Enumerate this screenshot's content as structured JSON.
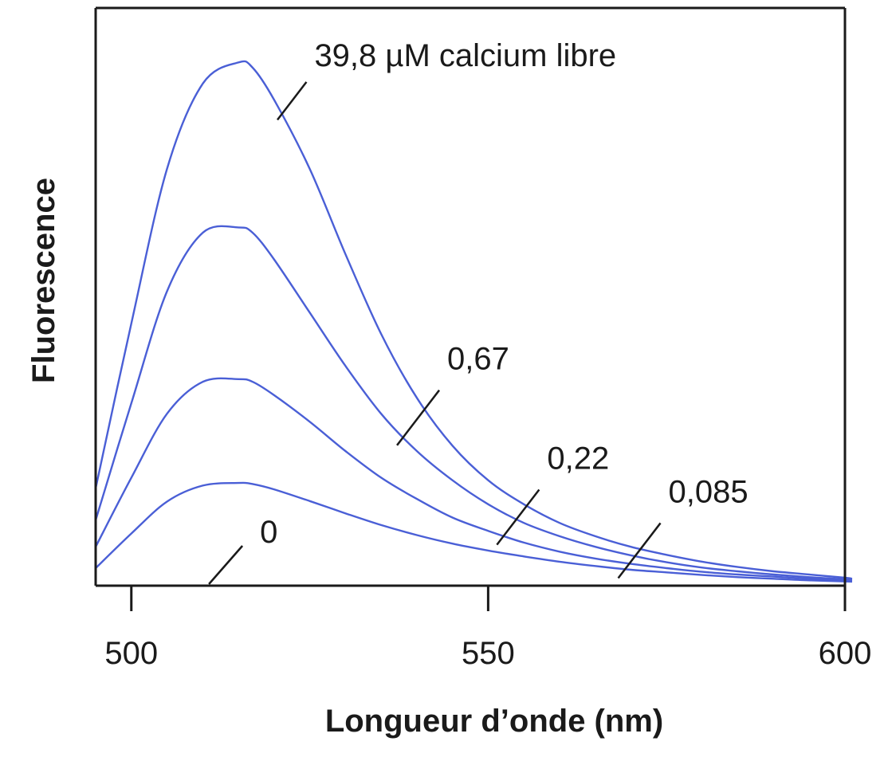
{
  "chart_data": {
    "type": "line",
    "title": "",
    "xlabel": "Longueur d’onde (nm)",
    "ylabel": "Fluorescence",
    "xlim": [
      495,
      600
    ],
    "ylim": [
      0,
      100
    ],
    "x_ticks": [
      500,
      550,
      600
    ],
    "x_tick_labels": [
      "500",
      "550",
      "600"
    ],
    "y_ticks_shown": false,
    "grid": false,
    "legend": "none",
    "line_color": "#4a5fd6",
    "axis_color": "#1a1a1a",
    "x": [
      495,
      500,
      505,
      510,
      515,
      517,
      520,
      525,
      530,
      535,
      540,
      545,
      550,
      555,
      560,
      565,
      570,
      575,
      580,
      585,
      590,
      595,
      600,
      601
    ],
    "series": [
      {
        "name": "39,8 µM calcium libre",
        "values": [
          18,
          49,
          78,
          94,
          98,
          97,
          91,
          78,
          62,
          47,
          35,
          26,
          19.5,
          15,
          11.5,
          9,
          7,
          5.5,
          4.2,
          3.2,
          2.4,
          1.8,
          1.2,
          1
        ]
      },
      {
        "name": "0,67",
        "values": [
          12,
          34,
          55,
          66,
          67,
          66,
          61,
          51,
          41,
          32,
          25,
          19.5,
          15,
          11.5,
          9,
          7,
          5.4,
          4.1,
          3.1,
          2.4,
          1.8,
          1.3,
          0.9,
          0.8
        ]
      },
      {
        "name": "0,22",
        "values": [
          7,
          20,
          32,
          38,
          38.5,
          38,
          35.5,
          30.5,
          25,
          20,
          16,
          12.5,
          10,
          7.8,
          6.1,
          4.8,
          3.8,
          3,
          2.3,
          1.8,
          1.4,
          1,
          0.7,
          0.6
        ]
      },
      {
        "name": "0,085",
        "values": [
          3,
          9.5,
          15.5,
          18.5,
          19,
          18.8,
          17.8,
          15.6,
          13.3,
          11.1,
          9.2,
          7.6,
          6.3,
          5.2,
          4.2,
          3.4,
          2.7,
          2.2,
          1.7,
          1.3,
          1,
          0.7,
          0.5,
          0.45
        ]
      },
      {
        "name": "0",
        "values": [
          0,
          0,
          0,
          0,
          0,
          0,
          0,
          0,
          0,
          0,
          0,
          0,
          0,
          0,
          0,
          0,
          0,
          0,
          0,
          0,
          0,
          0,
          0,
          0
        ]
      }
    ],
    "annotations": [
      {
        "text": "39,8 µM calcium libre",
        "series": "39,8 µM calcium libre",
        "x": 521
      },
      {
        "text": "0,67",
        "series": "0,67",
        "x": 538
      },
      {
        "text": "0,22",
        "series": "0,22",
        "x": 552
      },
      {
        "text": "0,085",
        "series": "0,085",
        "x": 569
      },
      {
        "text": "0",
        "series": "0",
        "x": 514
      }
    ]
  }
}
